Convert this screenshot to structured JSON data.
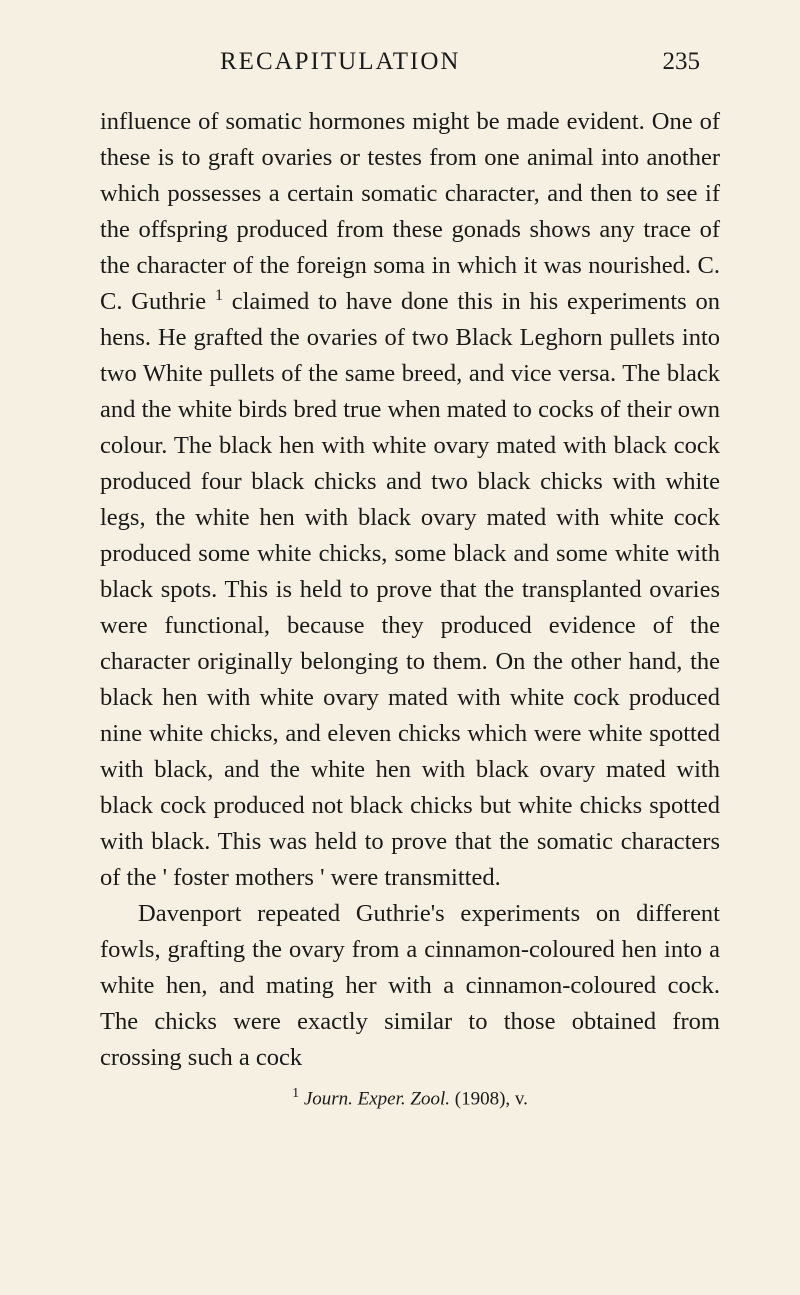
{
  "header": {
    "title": "RECAPITULATION",
    "pageNumber": "235"
  },
  "paragraphs": {
    "p1_part1": "influence of somatic hormones might be made evident. One of these is to graft ovaries or testes from one animal into another which possesses a certain somatic character, and then to see if the offspring produced from these gonads shows any trace of the character of the foreign soma in which it was nourished. C. C. Guthrie ",
    "p1_sup": "1",
    "p1_part2": " claimed to have done this in his experiments on hens. He grafted the ovaries of two Black Leghorn pullets into two White pullets of the same breed, and vice versa. The black and the white birds bred true when mated to cocks of their own colour. The black hen with white ovary mated with black cock produced four black chicks and two black chicks with white legs, the white hen with black ovary mated with white cock produced some white chicks, some black and some white with black spots. This is held to prove that the transplanted ovaries were functional, because they produced evidence of the character originally belonging to them. On the other hand, the black hen with white ovary mated with white cock produced nine white chicks, and eleven chicks which were white spotted with black, and the white hen with black ovary mated with black cock produced not black chicks but white chicks spotted with black. This was held to prove that the somatic characters of the ' foster mothers ' were transmitted.",
    "p2": "Davenport repeated Guthrie's experiments on different fowls, grafting the ovary from a cinnamon-coloured hen into a white hen, and mating her with a cinnamon-coloured cock. The chicks were exactly similar to those obtained from crossing such a cock"
  },
  "footnote": {
    "num": "1",
    "text_italic": "Journ. Exper. Zool.",
    "text_rest": " (1908), v."
  }
}
